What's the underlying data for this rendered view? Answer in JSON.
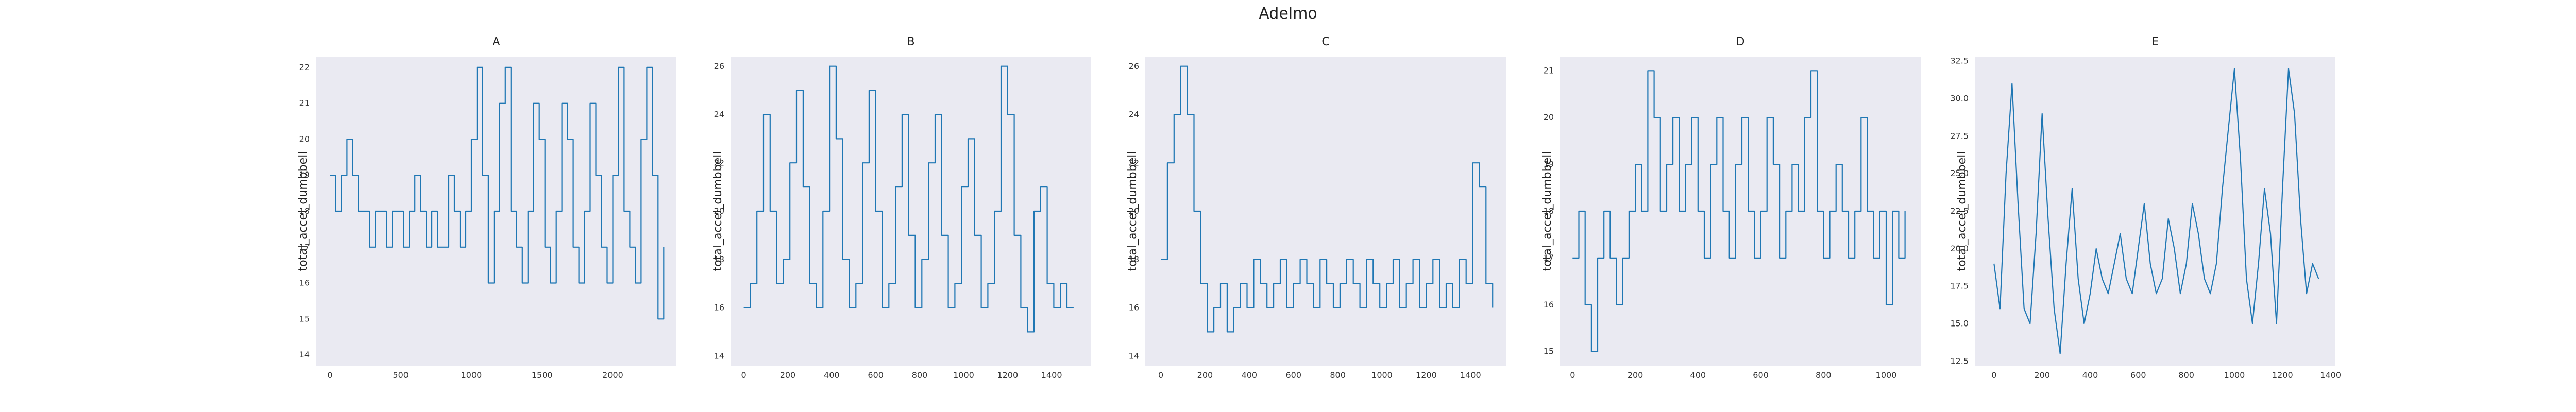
{
  "figure": {
    "title": "Adelmo"
  },
  "colors": {
    "panel_background": "#eaeaf2",
    "line": "#1f77b4"
  },
  "chart_data": [
    {
      "type": "line",
      "title": "A",
      "xlabel": "",
      "ylabel": "total_accel_dumbbell",
      "xlim": [
        -100,
        2450
      ],
      "ylim": [
        13.7,
        22.3
      ],
      "xticks": [
        0,
        500,
        1000,
        1500,
        2000
      ],
      "yticks": [
        14,
        15,
        16,
        17,
        18,
        19,
        20,
        21,
        22
      ],
      "grid": false,
      "style": "dense step trace",
      "series": [
        {
          "x": [
            0,
            40,
            80,
            120,
            160,
            200,
            240,
            280,
            320,
            360,
            400,
            440,
            480,
            520,
            560,
            600,
            640,
            680,
            720,
            760,
            800,
            840,
            880,
            920,
            960,
            1000,
            1040,
            1080,
            1120,
            1160,
            1200,
            1240,
            1280,
            1320,
            1360,
            1400,
            1440,
            1480,
            1520,
            1560,
            1600,
            1640,
            1680,
            1720,
            1760,
            1800,
            1840,
            1880,
            1920,
            1960,
            2000,
            2040,
            2080,
            2120,
            2160,
            2200,
            2240,
            2280,
            2320,
            2360
          ],
          "y": [
            19,
            18,
            19,
            20,
            19,
            18,
            18,
            17,
            18,
            18,
            17,
            18,
            18,
            17,
            18,
            19,
            18,
            17,
            18,
            17,
            17,
            19,
            18,
            17,
            18,
            20,
            22,
            19,
            16,
            18,
            21,
            22,
            18,
            17,
            16,
            18,
            21,
            20,
            17,
            16,
            18,
            21,
            20,
            17,
            16,
            18,
            21,
            19,
            17,
            16,
            19,
            22,
            18,
            17,
            16,
            20,
            22,
            19,
            15,
            17
          ]
        }
      ]
    },
    {
      "type": "line",
      "title": "B",
      "xlabel": "",
      "ylabel": "total_accel_dumbbell",
      "xlim": [
        -60,
        1580
      ],
      "ylim": [
        13.6,
        26.4
      ],
      "xticks": [
        0,
        200,
        400,
        600,
        800,
        1000,
        1200,
        1400
      ],
      "yticks": [
        14,
        16,
        18,
        20,
        22,
        24,
        26
      ],
      "grid": false,
      "style": "dense step trace",
      "series": [
        {
          "x": [
            0,
            30,
            60,
            90,
            120,
            150,
            180,
            210,
            240,
            270,
            300,
            330,
            360,
            390,
            420,
            450,
            480,
            510,
            540,
            570,
            600,
            630,
            660,
            690,
            720,
            750,
            780,
            810,
            840,
            870,
            900,
            930,
            960,
            990,
            1020,
            1050,
            1080,
            1110,
            1140,
            1170,
            1200,
            1230,
            1260,
            1290,
            1320,
            1350,
            1380,
            1410,
            1440,
            1470,
            1500
          ],
          "y": [
            16,
            17,
            20,
            24,
            20,
            17,
            18,
            22,
            25,
            21,
            17,
            16,
            20,
            26,
            23,
            18,
            16,
            17,
            22,
            25,
            20,
            16,
            17,
            21,
            24,
            19,
            16,
            18,
            22,
            24,
            19,
            16,
            17,
            21,
            23,
            19,
            16,
            17,
            20,
            26,
            24,
            19,
            16,
            15,
            20,
            21,
            17,
            16,
            17,
            16,
            16
          ]
        }
      ]
    },
    {
      "type": "line",
      "title": "C",
      "xlabel": "",
      "ylabel": "total_accel_dumbbell",
      "xlim": [
        -70,
        1560
      ],
      "ylim": [
        13.6,
        26.4
      ],
      "xticks": [
        0,
        200,
        400,
        600,
        800,
        1000,
        1200,
        1400
      ],
      "yticks": [
        14,
        16,
        18,
        20,
        22,
        24,
        26
      ],
      "grid": false,
      "style": "dense step trace",
      "series": [
        {
          "x": [
            0,
            30,
            60,
            90,
            120,
            150,
            180,
            210,
            240,
            270,
            300,
            330,
            360,
            390,
            420,
            450,
            480,
            510,
            540,
            570,
            600,
            630,
            660,
            690,
            720,
            750,
            780,
            810,
            840,
            870,
            900,
            930,
            960,
            990,
            1020,
            1050,
            1080,
            1110,
            1140,
            1170,
            1200,
            1230,
            1260,
            1290,
            1320,
            1350,
            1380,
            1410,
            1440,
            1470,
            1500
          ],
          "y": [
            18,
            22,
            24,
            26,
            24,
            20,
            17,
            15,
            16,
            17,
            15,
            16,
            17,
            16,
            18,
            17,
            16,
            17,
            18,
            16,
            17,
            18,
            17,
            16,
            18,
            17,
            16,
            17,
            18,
            17,
            16,
            18,
            17,
            16,
            17,
            18,
            16,
            17,
            18,
            16,
            17,
            18,
            16,
            17,
            16,
            18,
            17,
            22,
            21,
            17,
            16
          ]
        }
      ]
    },
    {
      "type": "line",
      "title": "D",
      "xlabel": "",
      "ylabel": "total_accel_dumbbell",
      "xlim": [
        -40,
        1110
      ],
      "ylim": [
        14.7,
        21.3
      ],
      "xticks": [
        0,
        200,
        400,
        600,
        800,
        1000
      ],
      "yticks": [
        15,
        16,
        17,
        18,
        19,
        20,
        21
      ],
      "grid": false,
      "style": "dense step trace",
      "series": [
        {
          "x": [
            0,
            20,
            40,
            60,
            80,
            100,
            120,
            140,
            160,
            180,
            200,
            220,
            240,
            260,
            280,
            300,
            320,
            340,
            360,
            380,
            400,
            420,
            440,
            460,
            480,
            500,
            520,
            540,
            560,
            580,
            600,
            620,
            640,
            660,
            680,
            700,
            720,
            740,
            760,
            780,
            800,
            820,
            840,
            860,
            880,
            900,
            920,
            940,
            960,
            980,
            1000,
            1020,
            1040,
            1060
          ],
          "y": [
            17,
            18,
            16,
            15,
            17,
            18,
            17,
            16,
            17,
            18,
            19,
            18,
            21,
            20,
            18,
            19,
            20,
            18,
            19,
            20,
            18,
            17,
            19,
            20,
            18,
            17,
            19,
            20,
            18,
            17,
            18,
            20,
            19,
            17,
            18,
            19,
            18,
            20,
            21,
            18,
            17,
            18,
            19,
            18,
            17,
            18,
            20,
            18,
            17,
            18,
            16,
            18,
            17,
            18
          ]
        }
      ]
    },
    {
      "type": "line",
      "title": "E",
      "xlabel": "",
      "ylabel": "total_accel_dumbbell",
      "xlim": [
        -80,
        1420
      ],
      "ylim": [
        12.2,
        32.8
      ],
      "xticks": [
        0,
        200,
        400,
        600,
        800,
        1000,
        1200,
        1400
      ],
      "yticks": [
        12.5,
        15.0,
        17.5,
        20.0,
        22.5,
        25.0,
        27.5,
        30.0,
        32.5
      ],
      "grid": false,
      "style": "smooth oscillating trace",
      "series": [
        {
          "x": [
            0,
            25,
            50,
            75,
            100,
            125,
            150,
            175,
            200,
            225,
            250,
            275,
            300,
            325,
            350,
            375,
            400,
            425,
            450,
            475,
            500,
            525,
            550,
            575,
            600,
            625,
            650,
            675,
            700,
            725,
            750,
            775,
            800,
            825,
            850,
            875,
            900,
            925,
            950,
            975,
            1000,
            1025,
            1050,
            1075,
            1100,
            1125,
            1150,
            1175,
            1200,
            1225,
            1250,
            1275,
            1300,
            1325,
            1350
          ],
          "y": [
            19,
            16,
            25,
            31,
            23,
            16,
            15,
            21,
            29,
            22,
            16,
            13,
            19,
            24,
            18,
            15,
            17,
            20,
            18,
            17,
            19,
            21,
            18,
            17,
            20,
            23,
            19,
            17,
            18,
            22,
            20,
            17,
            19,
            23,
            21,
            18,
            17,
            19,
            24,
            28,
            32,
            26,
            18,
            15,
            19,
            24,
            21,
            15,
            24,
            32,
            29,
            22,
            17,
            19,
            18
          ]
        }
      ]
    }
  ]
}
